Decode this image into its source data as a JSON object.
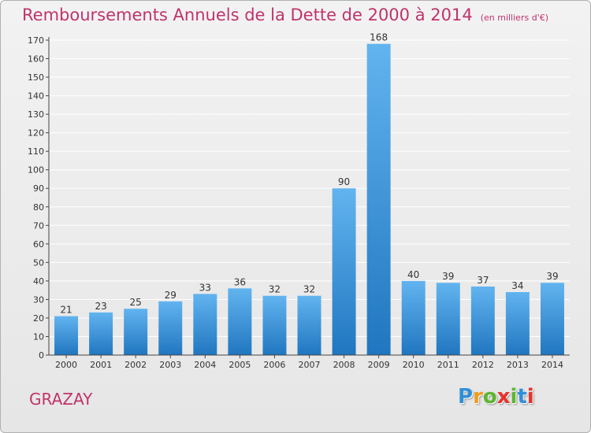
{
  "title": "Remboursements Annuels de la Dette de 2000 à 2014",
  "subtitle": "(en milliers d'€)",
  "commune": "GRAZAY",
  "logo": {
    "letters": [
      "P",
      "r",
      "o",
      "x",
      "i",
      "t",
      "i"
    ],
    "colors": [
      "#2f8fd6",
      "#f29b1d",
      "#5cb631",
      "#e6322d",
      "#5cb631",
      "#2f8fd6",
      "#e6322d"
    ]
  },
  "colors": {
    "title": "#c0336c",
    "bar_top": "#62b4ef",
    "bar_bottom": "#2076c0",
    "axis": "#444444",
    "grid": "#ffffff"
  },
  "chart_data": {
    "type": "bar",
    "categories": [
      "2000",
      "2001",
      "2002",
      "2003",
      "2004",
      "2005",
      "2006",
      "2007",
      "2008",
      "2009",
      "2010",
      "2011",
      "2012",
      "2013",
      "2014"
    ],
    "values": [
      21,
      23,
      25,
      29,
      33,
      36,
      32,
      32,
      90,
      168,
      40,
      39,
      37,
      34,
      39
    ],
    "yticks": [
      0,
      10,
      20,
      30,
      40,
      50,
      60,
      70,
      80,
      90,
      100,
      110,
      120,
      130,
      140,
      150,
      160,
      170
    ],
    "ylim": [
      0,
      170
    ],
    "grid": true
  }
}
